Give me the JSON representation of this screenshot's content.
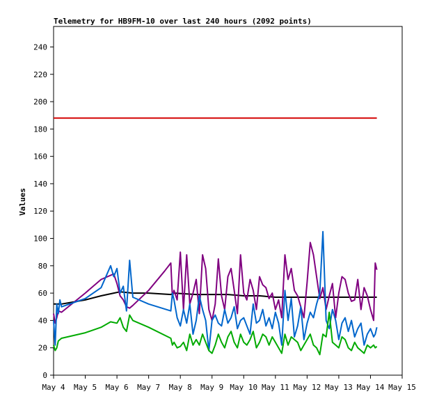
{
  "chart_data": {
    "type": "line",
    "title": "Telemetry for HB9FM-10 over last 240 hours (2092 points)",
    "ylabel": "Values",
    "xlabel": "",
    "xlim": [
      4.0,
      15.0
    ],
    "ylim": [
      0,
      255
    ],
    "grid": false,
    "x_ticks": [
      {
        "x": 4,
        "label": "May 4"
      },
      {
        "x": 5,
        "label": "May 5"
      },
      {
        "x": 6,
        "label": "May 6"
      },
      {
        "x": 7,
        "label": "May 7"
      },
      {
        "x": 8,
        "label": "May 8"
      },
      {
        "x": 9,
        "label": "May 9"
      },
      {
        "x": 10,
        "label": "May 10"
      },
      {
        "x": 11,
        "label": "May 11"
      },
      {
        "x": 12,
        "label": "May 12"
      },
      {
        "x": 13,
        "label": "May 13"
      },
      {
        "x": 14,
        "label": "May 14"
      },
      {
        "x": 15,
        "label": "May 15"
      }
    ],
    "y_ticks": [
      0,
      20,
      40,
      60,
      80,
      100,
      120,
      140,
      160,
      180,
      200,
      220,
      240
    ],
    "series": [
      {
        "color": "#d40000",
        "x": [
          4.0,
          14.2
        ],
        "y": [
          188,
          188
        ]
      },
      {
        "color": "#000000",
        "x": [
          4.0,
          4.25,
          4.5,
          5.0,
          5.5,
          5.9,
          6.1,
          6.5,
          7.0,
          7.7,
          7.8,
          8.5,
          9.0,
          9.5,
          10.0,
          10.5,
          11.0,
          11.5,
          12.0,
          12.5,
          13.0,
          13.5,
          14.0,
          14.2
        ],
        "y": [
          52,
          52,
          53,
          55,
          58,
          60,
          61,
          60,
          60,
          59,
          60,
          59,
          59,
          59,
          58,
          58,
          57,
          57,
          57,
          57,
          57,
          57,
          57,
          57
        ]
      },
      {
        "color": "#800080",
        "x": [
          4.0,
          4.05,
          4.1,
          4.15,
          4.25,
          5.0,
          5.5,
          5.9,
          6.0,
          6.1,
          6.2,
          6.3,
          6.4,
          6.5,
          7.0,
          7.5,
          7.7,
          7.75,
          7.8,
          7.9,
          8.0,
          8.1,
          8.2,
          8.3,
          8.4,
          8.5,
          8.6,
          8.7,
          8.8,
          8.9,
          9.0,
          9.1,
          9.2,
          9.3,
          9.4,
          9.5,
          9.6,
          9.7,
          9.8,
          9.9,
          10.0,
          10.1,
          10.2,
          10.3,
          10.4,
          10.5,
          10.6,
          10.7,
          10.8,
          10.9,
          11.0,
          11.1,
          11.2,
          11.3,
          11.4,
          11.5,
          11.6,
          11.7,
          11.8,
          11.9,
          12.0,
          12.1,
          12.2,
          12.3,
          12.4,
          12.5,
          12.6,
          12.7,
          12.8,
          12.9,
          13.0,
          13.1,
          13.2,
          13.3,
          13.4,
          13.5,
          13.6,
          13.7,
          13.8,
          13.9,
          14.0,
          14.1,
          14.15,
          14.2
        ],
        "y": [
          45,
          38,
          42,
          47,
          46,
          60,
          70,
          74,
          67,
          58,
          55,
          50,
          49,
          51,
          62,
          76,
          82,
          57,
          62,
          55,
          90,
          48,
          88,
          52,
          60,
          70,
          45,
          88,
          78,
          48,
          40,
          52,
          85,
          58,
          48,
          72,
          78,
          62,
          45,
          88,
          60,
          55,
          70,
          62,
          48,
          72,
          66,
          64,
          56,
          60,
          48,
          55,
          42,
          88,
          70,
          78,
          62,
          58,
          50,
          42,
          68,
          97,
          88,
          72,
          56,
          64,
          48,
          58,
          67,
          42,
          60,
          72,
          70,
          60,
          54,
          55,
          70,
          48,
          64,
          58,
          48,
          40,
          82,
          77
        ]
      },
      {
        "color": "#0066cc",
        "x": [
          4.0,
          4.05,
          4.1,
          4.15,
          4.2,
          4.25,
          5.0,
          5.5,
          5.8,
          5.9,
          6.0,
          6.1,
          6.2,
          6.3,
          6.4,
          6.5,
          7.0,
          7.7,
          7.75,
          7.8,
          7.9,
          8.0,
          8.1,
          8.2,
          8.3,
          8.4,
          8.5,
          8.6,
          8.7,
          8.8,
          8.9,
          9.0,
          9.1,
          9.2,
          9.3,
          9.4,
          9.5,
          9.6,
          9.7,
          9.8,
          9.9,
          10.0,
          10.1,
          10.2,
          10.3,
          10.4,
          10.5,
          10.6,
          10.7,
          10.8,
          10.9,
          11.0,
          11.1,
          11.2,
          11.3,
          11.4,
          11.5,
          11.6,
          11.7,
          11.8,
          11.9,
          12.0,
          12.1,
          12.2,
          12.3,
          12.4,
          12.5,
          12.6,
          12.7,
          12.8,
          12.9,
          13.0,
          13.1,
          13.2,
          13.3,
          13.4,
          13.5,
          13.6,
          13.7,
          13.8,
          13.9,
          14.0,
          14.1,
          14.15,
          14.2
        ],
        "y": [
          40,
          22,
          52,
          45,
          55,
          50,
          56,
          64,
          80,
          72,
          78,
          60,
          65,
          47,
          84,
          57,
          52,
          47,
          60,
          55,
          42,
          36,
          48,
          38,
          52,
          30,
          40,
          58,
          48,
          40,
          18,
          40,
          44,
          38,
          36,
          48,
          38,
          42,
          50,
          34,
          40,
          42,
          36,
          30,
          52,
          38,
          40,
          48,
          36,
          42,
          34,
          46,
          38,
          22,
          62,
          40,
          56,
          28,
          36,
          50,
          26,
          38,
          46,
          42,
          52,
          60,
          105,
          40,
          34,
          48,
          40,
          26,
          38,
          42,
          32,
          40,
          28,
          34,
          38,
          22,
          30,
          34,
          28,
          30,
          35
        ]
      },
      {
        "color": "#00aa00",
        "x": [
          4.0,
          4.05,
          4.1,
          4.15,
          4.25,
          5.0,
          5.5,
          5.8,
          6.0,
          6.1,
          6.2,
          6.3,
          6.4,
          6.5,
          7.0,
          7.7,
          7.75,
          7.8,
          7.9,
          8.0,
          8.1,
          8.2,
          8.3,
          8.4,
          8.5,
          8.6,
          8.7,
          8.8,
          8.9,
          9.0,
          9.1,
          9.2,
          9.3,
          9.4,
          9.5,
          9.6,
          9.7,
          9.8,
          9.9,
          10.0,
          10.1,
          10.2,
          10.3,
          10.4,
          10.5,
          10.6,
          10.7,
          10.8,
          10.9,
          11.0,
          11.1,
          11.2,
          11.3,
          11.4,
          11.5,
          11.6,
          11.7,
          11.8,
          11.9,
          12.0,
          12.1,
          12.2,
          12.3,
          12.4,
          12.5,
          12.6,
          12.7,
          12.8,
          12.9,
          13.0,
          13.1,
          13.2,
          13.3,
          13.4,
          13.5,
          13.6,
          13.7,
          13.8,
          13.9,
          14.0,
          14.1,
          14.15,
          14.2
        ],
        "y": [
          22,
          18,
          20,
          25,
          27,
          31,
          35,
          39,
          38,
          42,
          35,
          32,
          44,
          40,
          35,
          27,
          22,
          24,
          20,
          21,
          24,
          18,
          30,
          22,
          26,
          22,
          30,
          24,
          18,
          16,
          22,
          30,
          24,
          20,
          28,
          32,
          24,
          20,
          30,
          24,
          22,
          26,
          32,
          20,
          24,
          30,
          28,
          22,
          28,
          24,
          20,
          16,
          30,
          22,
          28,
          26,
          24,
          18,
          22,
          26,
          30,
          22,
          20,
          15,
          30,
          28,
          46,
          24,
          22,
          20,
          28,
          26,
          20,
          18,
          24,
          20,
          18,
          16,
          22,
          20,
          22,
          20,
          21
        ]
      }
    ]
  }
}
